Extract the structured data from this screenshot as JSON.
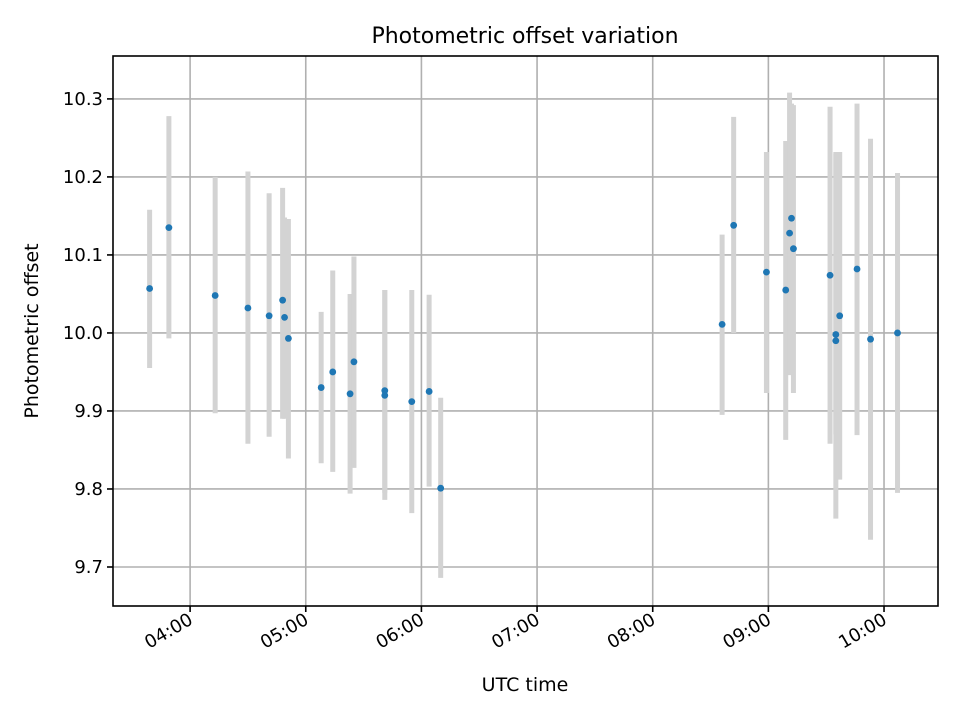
{
  "chart_data": {
    "type": "scatter",
    "title": "Photometric offset variation",
    "xlabel": "UTC time",
    "ylabel": "Photometric offset",
    "xlim": [
      "03:20",
      "10:28"
    ],
    "ylim": [
      9.65,
      10.355
    ],
    "grid": true,
    "x_ticks": [
      "04:00",
      "05:00",
      "06:00",
      "07:00",
      "08:00",
      "09:00",
      "10:00"
    ],
    "y_ticks": [
      "9.7",
      "9.8",
      "9.9",
      "10.0",
      "10.1",
      "10.2",
      "10.3"
    ],
    "point_color": "#1f77b4",
    "errorbar_color": "#d3d3d3",
    "series": [
      {
        "points": [
          {
            "x": "03:39",
            "y": 10.057,
            "ylow": 9.955,
            "yhigh": 10.158
          },
          {
            "x": "03:49",
            "y": 10.135,
            "ylow": 9.993,
            "yhigh": 10.278
          },
          {
            "x": "04:13",
            "y": 10.048,
            "ylow": 9.897,
            "yhigh": 10.2
          },
          {
            "x": "04:30",
            "y": 10.032,
            "ylow": 9.858,
            "yhigh": 10.207
          },
          {
            "x": "04:41",
            "y": 10.022,
            "ylow": 9.867,
            "yhigh": 10.179
          },
          {
            "x": "04:48",
            "y": 10.042,
            "ylow": 9.89,
            "yhigh": 10.186
          },
          {
            "x": "04:49",
            "y": 10.02,
            "ylow": 9.89,
            "yhigh": 10.148
          },
          {
            "x": "04:51",
            "y": 9.993,
            "ylow": 9.839,
            "yhigh": 10.146
          },
          {
            "x": "05:08",
            "y": 9.93,
            "ylow": 9.833,
            "yhigh": 10.027
          },
          {
            "x": "05:14",
            "y": 9.95,
            "ylow": 9.822,
            "yhigh": 10.08
          },
          {
            "x": "05:23",
            "y": 9.922,
            "ylow": 9.794,
            "yhigh": 10.05
          },
          {
            "x": "05:25",
            "y": 9.963,
            "ylow": 9.827,
            "yhigh": 10.098
          },
          {
            "x": "05:41",
            "y": 9.92,
            "ylow": 9.786,
            "yhigh": 10.055
          },
          {
            "x": "05:41",
            "y": 9.926,
            "ylow": 9.795,
            "yhigh": 10.055
          },
          {
            "x": "05:55",
            "y": 9.912,
            "ylow": 9.769,
            "yhigh": 10.055
          },
          {
            "x": "06:04",
            "y": 9.925,
            "ylow": 9.803,
            "yhigh": 10.049
          },
          {
            "x": "06:10",
            "y": 9.801,
            "ylow": 9.686,
            "yhigh": 9.917
          },
          {
            "x": "08:36",
            "y": 10.011,
            "ylow": 9.895,
            "yhigh": 10.126
          },
          {
            "x": "08:42",
            "y": 10.138,
            "ylow": 10.0,
            "yhigh": 10.277
          },
          {
            "x": "08:59",
            "y": 10.078,
            "ylow": 9.923,
            "yhigh": 10.232
          },
          {
            "x": "09:09",
            "y": 10.055,
            "ylow": 9.863,
            "yhigh": 10.246
          },
          {
            "x": "09:11",
            "y": 10.128,
            "ylow": 9.946,
            "yhigh": 10.308
          },
          {
            "x": "09:12",
            "y": 10.147,
            "ylow": 10.0,
            "yhigh": 10.294
          },
          {
            "x": "09:13",
            "y": 10.108,
            "ylow": 9.923,
            "yhigh": 10.292
          },
          {
            "x": "09:32",
            "y": 10.074,
            "ylow": 9.858,
            "yhigh": 10.29
          },
          {
            "x": "09:35",
            "y": 9.998,
            "ylow": 9.762,
            "yhigh": 10.232
          },
          {
            "x": "09:35",
            "y": 9.99,
            "ylow": 9.87,
            "yhigh": 10.23
          },
          {
            "x": "09:37",
            "y": 10.022,
            "ylow": 9.812,
            "yhigh": 10.232
          },
          {
            "x": "09:46",
            "y": 10.082,
            "ylow": 9.869,
            "yhigh": 10.294
          },
          {
            "x": "09:53",
            "y": 9.992,
            "ylow": 9.735,
            "yhigh": 10.249
          },
          {
            "x": "10:07",
            "y": 10.0,
            "ylow": 9.795,
            "yhigh": 10.205
          }
        ]
      }
    ]
  }
}
